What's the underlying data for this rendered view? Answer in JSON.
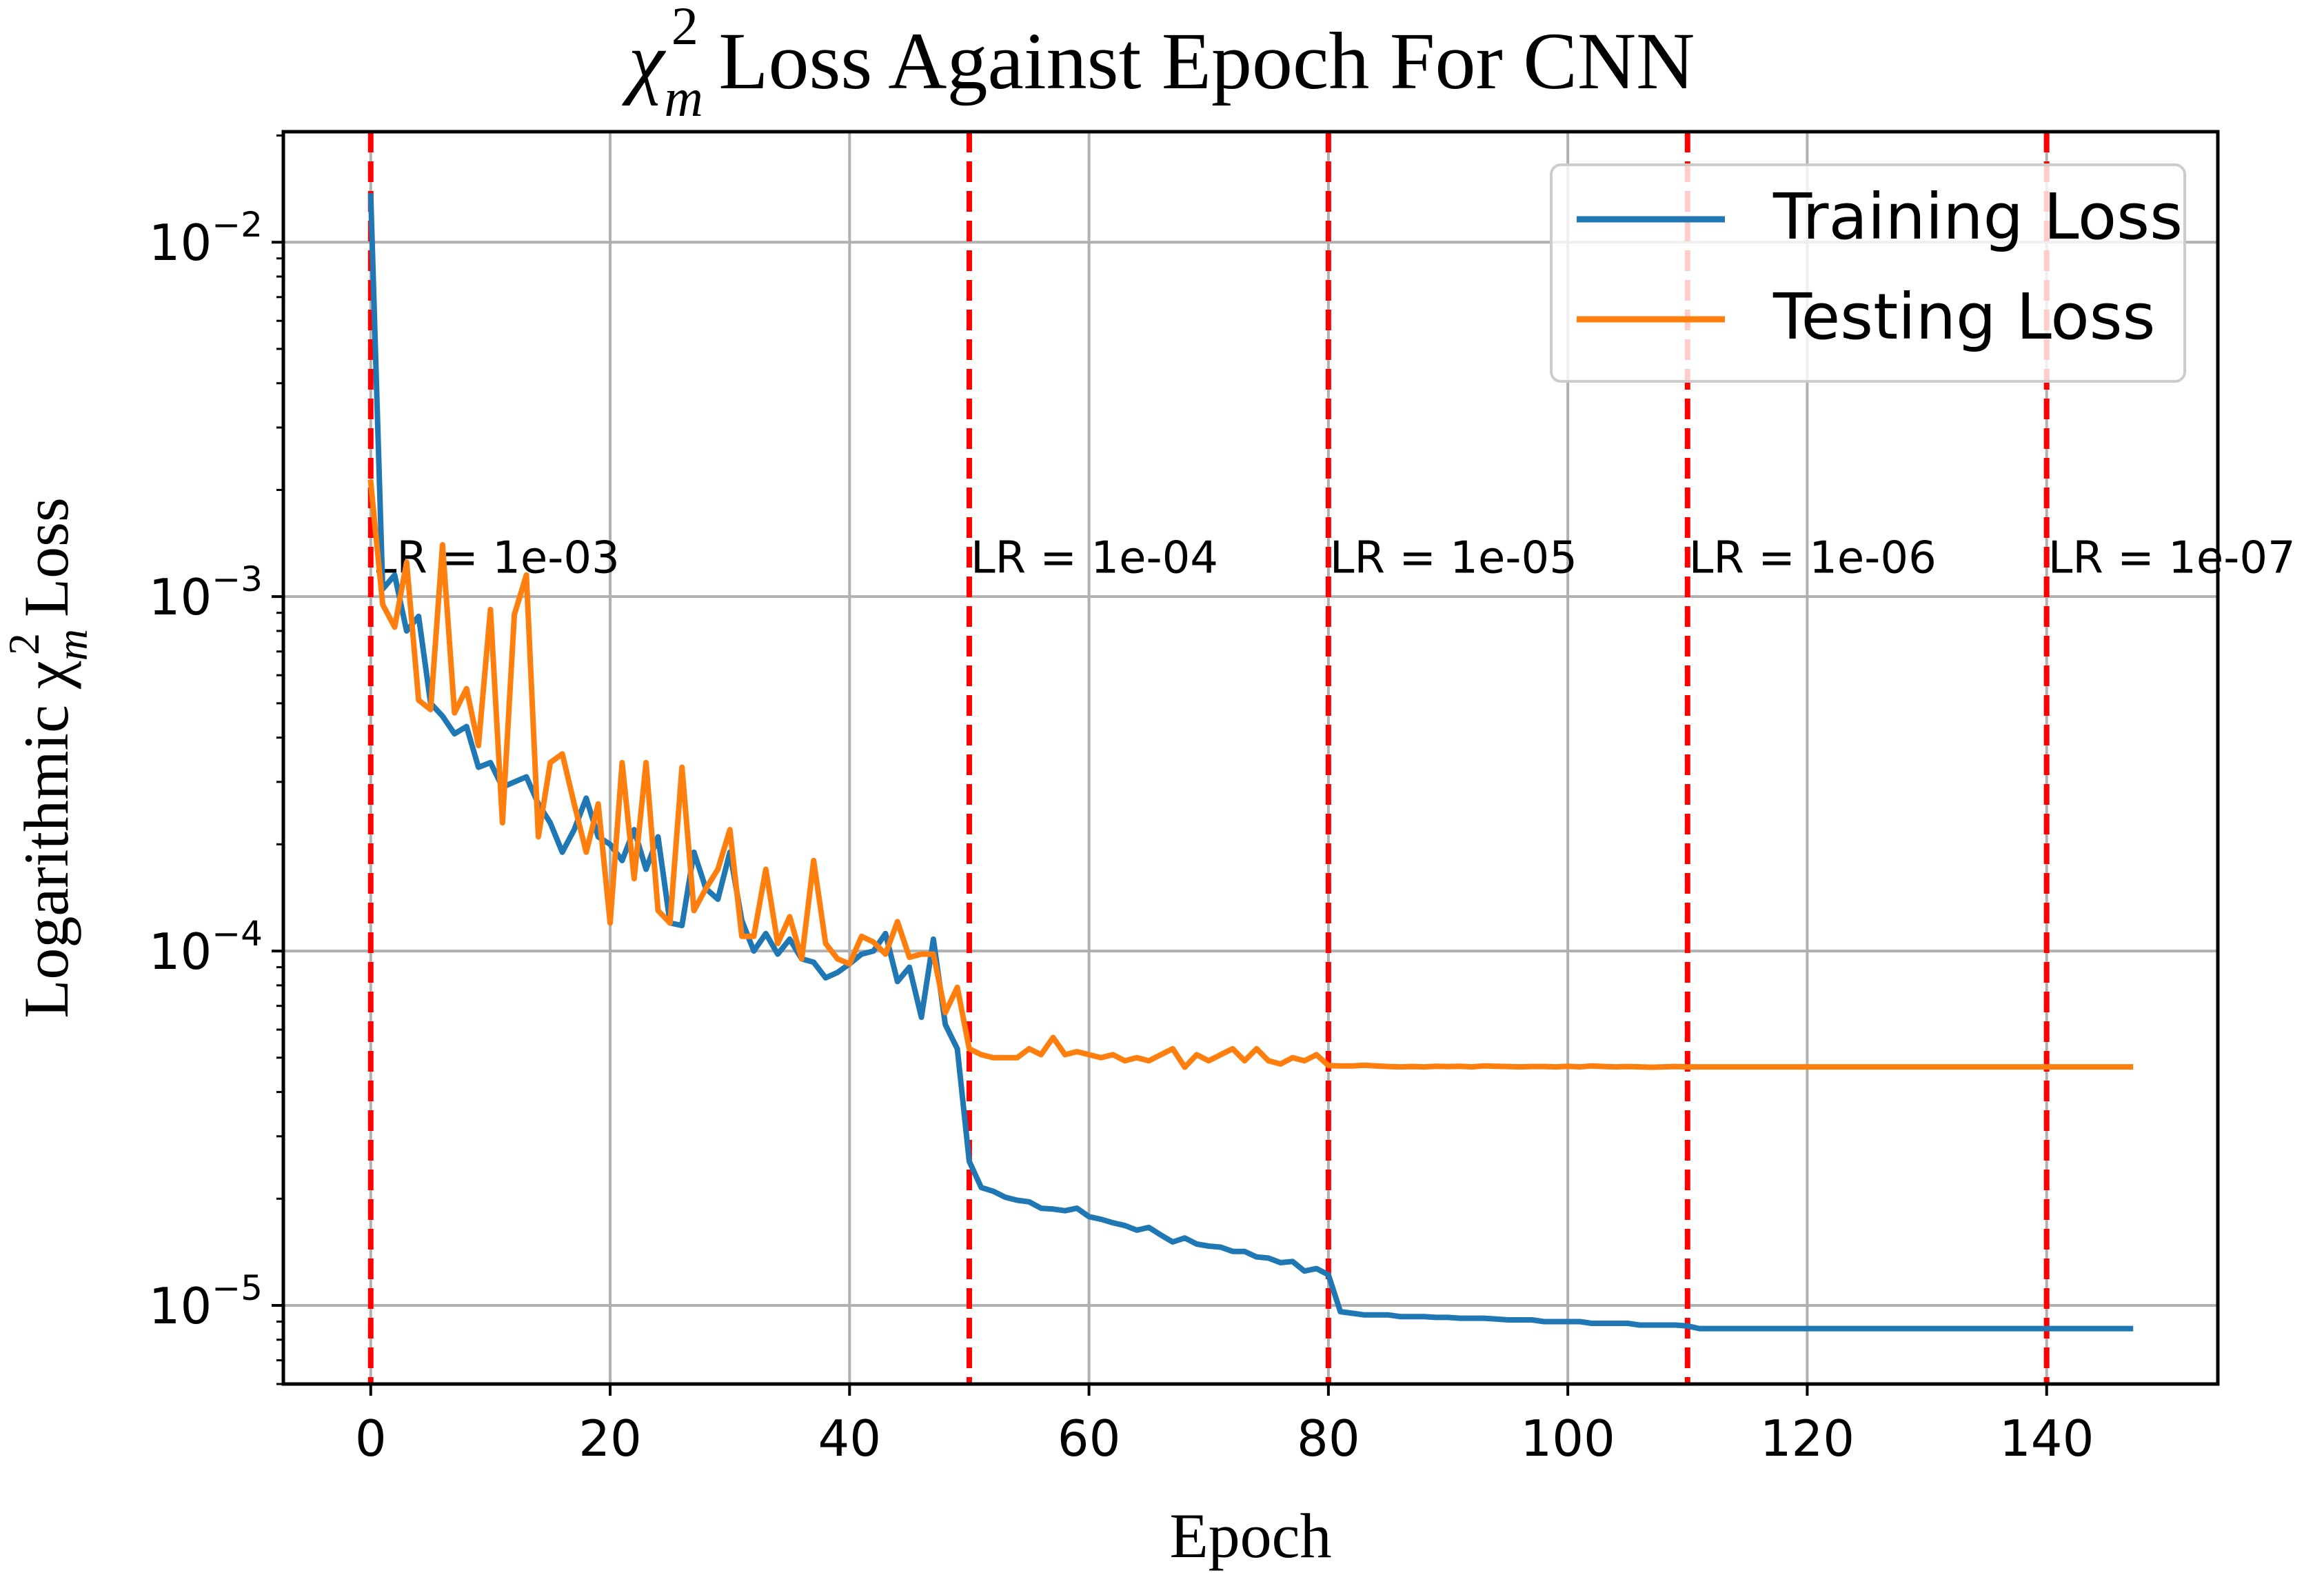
{
  "chart_data": {
    "type": "line",
    "title": "χ",
    "title_sub": "m",
    "title_sup": "2",
    "title_rest": " Loss Against Epoch For CNN",
    "xlabel": "Epoch",
    "ylabel_prefix": "Logarithmic χ",
    "ylabel_sub": "m",
    "ylabel_sup": "2",
    "ylabel_suffix": " Loss",
    "xlim": [
      -7.3,
      154.3
    ],
    "ylim": [
      6e-06,
      0.0205
    ],
    "yscale": "log",
    "grid": true,
    "legend_position": "top-right",
    "xticks": [
      0,
      20,
      40,
      60,
      80,
      100,
      120,
      140
    ],
    "xtick_labels": [
      "0",
      "20",
      "40",
      "60",
      "80",
      "100",
      "120",
      "140"
    ],
    "yticks": [
      1e-05,
      0.0001,
      0.001,
      0.01
    ],
    "ytick_labels": [
      {
        "base": "10",
        "exp": "−5"
      },
      {
        "base": "10",
        "exp": "−4"
      },
      {
        "base": "10",
        "exp": "−3"
      },
      {
        "base": "10",
        "exp": "−2"
      }
    ],
    "lr_markers": [
      {
        "epoch": 0,
        "label": "LR = 1e-03"
      },
      {
        "epoch": 50,
        "label": "LR = 1e-04"
      },
      {
        "epoch": 80,
        "label": "LR = 1e-05"
      },
      {
        "epoch": 110,
        "label": "LR = 1e-06"
      },
      {
        "epoch": 140,
        "label": "LR = 1e-07"
      }
    ],
    "lr_label_y": 0.0013,
    "series": [
      {
        "name": "Training Loss",
        "color": "#1f77b4",
        "values": [
          0.0135,
          0.00105,
          0.00115,
          0.0008,
          0.00088,
          0.0005,
          0.00046,
          0.00041,
          0.00043,
          0.00033,
          0.00034,
          0.00029,
          0.0003,
          0.00031,
          0.00026,
          0.00023,
          0.00019,
          0.00022,
          0.00027,
          0.00021,
          0.0002,
          0.00018,
          0.00022,
          0.00017,
          0.00021,
          0.00012,
          0.000118,
          0.00019,
          0.00015,
          0.00014,
          0.00019,
          0.000122,
          0.0001,
          0.000112,
          9.8e-05,
          0.000108,
          9.5e-05,
          9.3e-05,
          8.4e-05,
          8.7e-05,
          9.2e-05,
          9.8e-05,
          0.0001,
          0.000112,
          8.2e-05,
          9e-05,
          6.5e-05,
          0.000108,
          6.2e-05,
          5.3e-05,
          2.55e-05,
          2.15e-05,
          2.1e-05,
          2.02e-05,
          1.98e-05,
          1.96e-05,
          1.88e-05,
          1.87e-05,
          1.85e-05,
          1.88e-05,
          1.78e-05,
          1.75e-05,
          1.71e-05,
          1.68e-05,
          1.63e-05,
          1.66e-05,
          1.58e-05,
          1.51e-05,
          1.55e-05,
          1.49e-05,
          1.47e-05,
          1.46e-05,
          1.42e-05,
          1.42e-05,
          1.37e-05,
          1.36e-05,
          1.32e-05,
          1.33e-05,
          1.25e-05,
          1.27e-05,
          1.22e-05,
          9.6e-06,
          9.5e-06,
          9.4e-06,
          9.4e-06,
          9.4e-06,
          9.3e-06,
          9.3e-06,
          9.3e-06,
          9.25e-06,
          9.25e-06,
          9.2e-06,
          9.2e-06,
          9.2e-06,
          9.15e-06,
          9.1e-06,
          9.1e-06,
          9.1e-06,
          9e-06,
          9e-06,
          9e-06,
          9e-06,
          8.9e-06,
          8.9e-06,
          8.9e-06,
          8.9e-06,
          8.8e-06,
          8.8e-06,
          8.8e-06,
          8.8e-06,
          8.75e-06,
          8.6e-06,
          8.6e-06,
          8.6e-06,
          8.6e-06,
          8.6e-06,
          8.6e-06,
          8.6e-06,
          8.6e-06,
          8.6e-06,
          8.6e-06,
          8.6e-06,
          8.6e-06,
          8.6e-06,
          8.6e-06,
          8.6e-06,
          8.6e-06,
          8.6e-06,
          8.6e-06,
          8.6e-06,
          8.6e-06,
          8.6e-06,
          8.6e-06,
          8.6e-06,
          8.6e-06,
          8.6e-06,
          8.6e-06,
          8.6e-06,
          8.6e-06,
          8.6e-06,
          8.6e-06,
          8.6e-06,
          8.6e-06,
          8.6e-06,
          8.6e-06,
          8.6e-06,
          8.6e-06,
          8.6e-06
        ]
      },
      {
        "name": "Testing Loss",
        "color": "#ff7f0e",
        "values": [
          0.0021,
          0.00095,
          0.00082,
          0.00125,
          0.00051,
          0.00048,
          0.0014,
          0.00047,
          0.00055,
          0.00038,
          0.00092,
          0.00023,
          0.00089,
          0.00115,
          0.00021,
          0.00034,
          0.00036,
          0.00026,
          0.00019,
          0.00026,
          0.00012,
          0.00034,
          0.00016,
          0.00034,
          0.00013,
          0.00012,
          0.00033,
          0.00013,
          0.00015,
          0.00017,
          0.00022,
          0.00011,
          0.00011,
          0.00017,
          0.000105,
          0.000125,
          9.5e-05,
          0.00018,
          0.000105,
          9.5e-05,
          9.2e-05,
          0.00011,
          0.000106,
          9.8e-05,
          0.000121,
          9.6e-05,
          9.8e-05,
          9.8e-05,
          6.7e-05,
          7.9e-05,
          5.3e-05,
          5.1e-05,
          5e-05,
          5e-05,
          5e-05,
          5.3e-05,
          5.1e-05,
          5.7e-05,
          5.1e-05,
          5.2e-05,
          5.1e-05,
          5e-05,
          5.1e-05,
          4.9e-05,
          5e-05,
          4.9e-05,
          5.1e-05,
          5.3e-05,
          4.7e-05,
          5.1e-05,
          4.9e-05,
          5.1e-05,
          5.3e-05,
          4.9e-05,
          5.3e-05,
          4.9e-05,
          4.8e-05,
          5e-05,
          4.9e-05,
          5.1e-05,
          4.75e-05,
          4.74e-05,
          4.74e-05,
          4.76e-05,
          4.74e-05,
          4.72e-05,
          4.71e-05,
          4.72e-05,
          4.71e-05,
          4.73e-05,
          4.72e-05,
          4.73e-05,
          4.71e-05,
          4.74e-05,
          4.73e-05,
          4.72e-05,
          4.71e-05,
          4.72e-05,
          4.72e-05,
          4.71e-05,
          4.73e-05,
          4.71e-05,
          4.74e-05,
          4.72e-05,
          4.71e-05,
          4.72e-05,
          4.71e-05,
          4.7e-05,
          4.71e-05,
          4.72e-05,
          4.71e-05,
          4.71e-05,
          4.71e-05,
          4.71e-05,
          4.71e-05,
          4.71e-05,
          4.71e-05,
          4.71e-05,
          4.71e-05,
          4.71e-05,
          4.71e-05,
          4.71e-05,
          4.71e-05,
          4.71e-05,
          4.71e-05,
          4.71e-05,
          4.71e-05,
          4.71e-05,
          4.71e-05,
          4.71e-05,
          4.71e-05,
          4.71e-05,
          4.71e-05,
          4.71e-05,
          4.71e-05,
          4.71e-05,
          4.71e-05,
          4.71e-05,
          4.71e-05,
          4.71e-05,
          4.71e-05,
          4.71e-05,
          4.71e-05,
          4.71e-05,
          4.71e-05,
          4.71e-05,
          4.71e-05,
          4.71e-05
        ]
      }
    ]
  }
}
